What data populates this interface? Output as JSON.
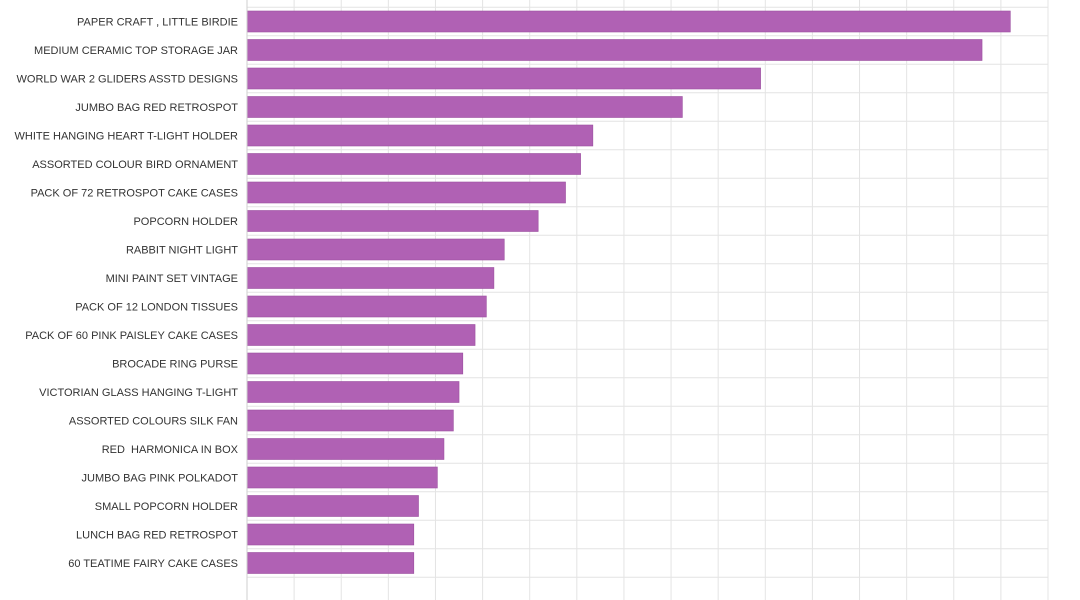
{
  "chart_data": {
    "type": "bar",
    "orientation": "horizontal",
    "title": "",
    "xlabel": "",
    "ylabel": "",
    "xlim": [
      0,
      85
    ],
    "grid": true,
    "bar_color": "#b061b4",
    "categories": [
      "PAPER CRAFT , LITTLE BIRDIE",
      "MEDIUM CERAMIC TOP STORAGE JAR",
      "WORLD WAR 2 GLIDERS ASSTD DESIGNS",
      "JUMBO BAG RED RETROSPOT",
      "WHITE HANGING HEART T-LIGHT HOLDER",
      "ASSORTED COLOUR BIRD ORNAMENT",
      "PACK OF 72 RETROSPOT CAKE CASES",
      "POPCORN HOLDER",
      "RABBIT NIGHT LIGHT",
      "MINI PAINT SET VINTAGE",
      "PACK OF 12 LONDON TISSUES",
      "PACK OF 60 PINK PAISLEY CAKE CASES",
      "BROCADE RING PURSE",
      "VICTORIAN GLASS HANGING T-LIGHT",
      "ASSORTED COLOURS SILK FAN",
      "RED  HARMONICA IN BOX",
      "JUMBO BAG PINK POLKADOT",
      "SMALL POPCORN HOLDER",
      "LUNCH BAG RED RETROSPOT",
      "60 TEATIME FAIRY CAKE CASES"
    ],
    "values": [
      81,
      78,
      54.5,
      46.2,
      36.7,
      35.4,
      33.8,
      30.9,
      27.3,
      26.2,
      25.4,
      24.2,
      22.9,
      22.5,
      21.9,
      20.9,
      20.2,
      18.2,
      17.7,
      17.7
    ]
  }
}
